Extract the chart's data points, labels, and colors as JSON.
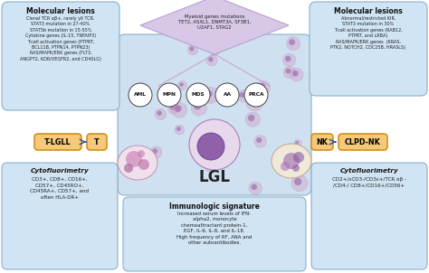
{
  "bg_color": "#ffffff",
  "cell_bg_color": "#cfe0f0",
  "diamond_color": "#d8c8e8",
  "diamond_edge_color": "#b8a0d0",
  "diamond_text": "Myeloid genes mutations\nTET2, ASXL1, DNMT3A, SF3B1,\nU2AF1, STAG2",
  "left_box_title": "Molecular lesions",
  "left_box_text": "Clonal TCR αβ+, rarely γδ TCR.\nSTAT3 mutation in 27-40%\nSTAT5b mutation in 15-55%\nCytokine genes (IL-15, TNFAIP3)\nT-cell activation genes (PTPRT,\nBCL11B, PTPN14, PTPN23)\nRAS/MAPK/ERK genes (FLT3,\nANGPT2, KDR/VEGFR2, and CD40LG)",
  "right_box_title": "Molecular lesions",
  "right_box_text": "Abnormal/restricted KIR.\nSTAT3 mutation in 30%\nT-cell activation genes (RAB12,\nPTPRT, and LRBA)\nRAS/MAPK/ERK genes  (KRAS,\nPTK2, NOTCH2, CDC25B, HRASLS)",
  "disease_circles": [
    "AML",
    "MPN",
    "MDS",
    "AA",
    "PRCA"
  ],
  "lgl_label": "LGL",
  "tlgll_label": "T-LGLL",
  "t_label": "T",
  "nk_label": "NK",
  "clpdnk_label": "CLPD-NK",
  "bottom_left_title": "Cytofluorimetry",
  "bottom_left_text": "CD3+, CD8+, CD16+,\nCD57+, CD45RO+,\nCD45RA+, CD57+, and\noften HLA-DR+",
  "bottom_mid_title": "Immunologic signature",
  "bottom_mid_text": "Increased serum levels of IFN-\nalpha2, monocyte\nchemoattractant protein-1,\nEGF, IL-6, IL-8, and IL-18.\nHigh frequency of RF, ANA and\nother autoantibodies.",
  "bottom_right_title": "Cytofluorimetry",
  "bottom_right_text": "CD2+/sCD3-/CD3ε+/TCR αβ -\n/CD4-/ CD8+/CD16+/CD56+",
  "light_blue": "#d0e4f4",
  "box_edge_color": "#8ab0cc",
  "orange_box_color": "#f5c87a",
  "orange_edge_color": "#d4901a",
  "arrow_color": "#2050a0"
}
